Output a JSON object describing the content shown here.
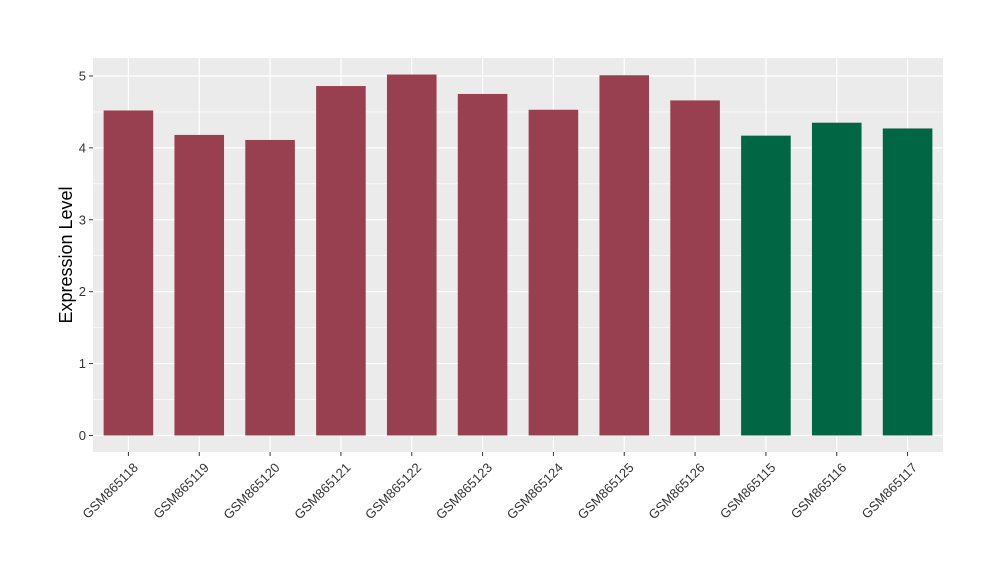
{
  "chart_data": {
    "type": "bar",
    "title": "",
    "xlabel": "",
    "ylabel": "Expression Level",
    "ylim": [
      -0.23,
      5.25
    ],
    "yticks": [
      0,
      1,
      2,
      3,
      4,
      5
    ],
    "grid": true,
    "legend": "none",
    "categories": [
      "GSM865118",
      "GSM865119",
      "GSM865120",
      "GSM865121",
      "GSM865122",
      "GSM865123",
      "GSM865124",
      "GSM865125",
      "GSM865126",
      "GSM865115",
      "GSM865116",
      "GSM865117"
    ],
    "values": [
      4.52,
      4.18,
      4.11,
      4.86,
      5.02,
      4.75,
      4.53,
      5.01,
      4.66,
      4.17,
      4.35,
      4.27
    ],
    "bar_colors": [
      "#98404F",
      "#98404F",
      "#98404F",
      "#98404F",
      "#98404F",
      "#98404F",
      "#98404F",
      "#98404F",
      "#98404F",
      "#006644",
      "#006644",
      "#006644"
    ],
    "panel_background": "#EBEBEB",
    "gridline_color": "#FFFFFF"
  }
}
